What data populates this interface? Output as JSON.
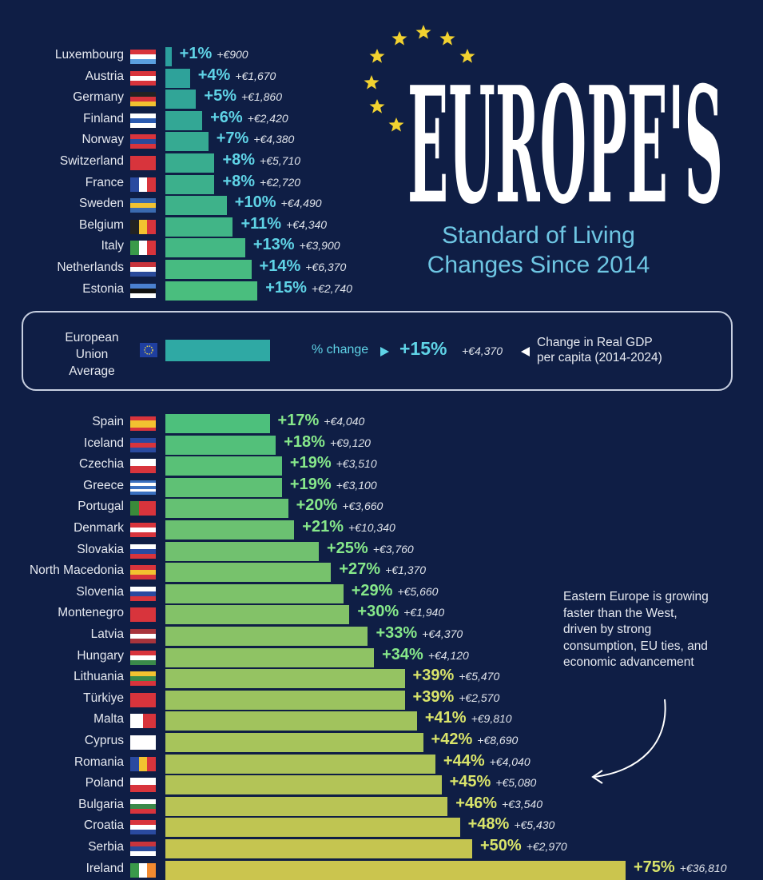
{
  "title": {
    "main": "EUROPE'S",
    "subtitle_line1": "Standard of Living",
    "subtitle_line2": "Changes Since 2014"
  },
  "eu_average": {
    "label_lines": [
      "European",
      "Union",
      "Average"
    ],
    "change_label": "% change",
    "pct": "+15%",
    "abs": "+€4,370",
    "description_line1": "Change in Real GDP",
    "description_line2": "per capita (2014-2024)",
    "value": 15
  },
  "annotation": [
    "Eastern Europe is growing",
    "faster than the West,",
    "driven by strong",
    "consumption, EU ties, and",
    "economic advancement"
  ],
  "colors": {
    "background": "#0f1e45",
    "bar_top": "#2b9f9d",
    "bar_mid": "#4cc07c",
    "bar_bottom": "#cbc54e",
    "stars": "#f2d230",
    "subtitle": "#6ec6e3"
  },
  "chart_data": {
    "type": "bar",
    "orientation": "horizontal",
    "grid": false,
    "xlim": [
      0,
      75
    ],
    "categories": [
      "Luxembourg",
      "Austria",
      "Germany",
      "Finland",
      "Norway",
      "Switzerland",
      "France",
      "Sweden",
      "Belgium",
      "Italy",
      "Netherlands",
      "Estonia",
      "Spain",
      "Iceland",
      "Czechia",
      "Greece",
      "Portugal",
      "Denmark",
      "Slovakia",
      "North Macedonia",
      "Slovenia",
      "Montenegro",
      "Latvia",
      "Hungary",
      "Lithuania",
      "Türkiye",
      "Malta",
      "Cyprus",
      "Romania",
      "Poland",
      "Bulgaria",
      "Croatia",
      "Serbia",
      "Ireland"
    ],
    "values": [
      1,
      4,
      5,
      6,
      7,
      8,
      8,
      10,
      11,
      13,
      14,
      15,
      17,
      18,
      19,
      19,
      20,
      21,
      25,
      27,
      29,
      30,
      33,
      34,
      39,
      39,
      41,
      42,
      44,
      45,
      46,
      48,
      50,
      75
    ],
    "pct_labels": [
      "+1%",
      "+4%",
      "+5%",
      "+6%",
      "+7%",
      "+8%",
      "+8%",
      "+10%",
      "+11%",
      "+13%",
      "+14%",
      "+15%",
      "+17%",
      "+18%",
      "+19%",
      "+19%",
      "+20%",
      "+21%",
      "+25%",
      "+27%",
      "+29%",
      "+30%",
      "+33%",
      "+34%",
      "+39%",
      "+39%",
      "+41%",
      "+42%",
      "+44%",
      "+45%",
      "+46%",
      "+48%",
      "+50%",
      "+75%"
    ],
    "abs_labels": [
      "+€900",
      "+€1,670",
      "+€1,860",
      "+€2,420",
      "+€4,380",
      "+€5,710",
      "+€2,720",
      "+€4,490",
      "+€4,340",
      "+€3,900",
      "+€6,370",
      "+€2,740",
      "+€4,040",
      "+€9,120",
      "+€3,510",
      "+€3,100",
      "+€3,660",
      "+€10,340",
      "+€3,760",
      "+€1,370",
      "+€5,660",
      "+€1,940",
      "+€4,370",
      "+€4,120",
      "+€5,470",
      "+€2,570",
      "+€9,810",
      "+€8,690",
      "+€4,040",
      "+€5,080",
      "+€3,540",
      "+€5,430",
      "+€2,970",
      "+€36,810"
    ],
    "flags": [
      [
        "h",
        "#d8343c",
        "#ffffff",
        "#5aa0e0"
      ],
      [
        "h",
        "#d8343c",
        "#ffffff",
        "#d8343c"
      ],
      [
        "h",
        "#222222",
        "#d8343c",
        "#f2c230"
      ],
      [
        "h",
        "#ffffff",
        "#2a5ab0",
        "#ffffff"
      ],
      [
        "h",
        "#d8343c",
        "#2a4a9a",
        "#d8343c"
      ],
      [
        "h",
        "#d8343c"
      ],
      [
        "v",
        "#2a4aa0",
        "#ffffff",
        "#d8343c"
      ],
      [
        "h",
        "#3a6ab0",
        "#f2c230",
        "#3a6ab0"
      ],
      [
        "v",
        "#222222",
        "#f2c230",
        "#d8343c"
      ],
      [
        "v",
        "#3a9a4a",
        "#ffffff",
        "#d8343c"
      ],
      [
        "h",
        "#c8343c",
        "#ffffff",
        "#2a4a9a"
      ],
      [
        "h",
        "#4a80d0",
        "#111111",
        "#ffffff"
      ],
      [
        "h",
        "#d8343c",
        "#f2c230",
        "#f2c230",
        "#d8343c"
      ],
      [
        "h",
        "#2a4aa0",
        "#d8343c",
        "#2a4aa0"
      ],
      [
        "h",
        "#ffffff",
        "#d8343c"
      ],
      [
        "h",
        "#3a70c0",
        "#ffffff",
        "#3a70c0",
        "#ffffff",
        "#3a70c0"
      ],
      [
        "v",
        "#3a8a3a",
        "#d8343c",
        "#d8343c"
      ],
      [
        "h",
        "#d8343c",
        "#ffffff",
        "#d8343c"
      ],
      [
        "h",
        "#ffffff",
        "#2a4aa0",
        "#d8343c"
      ],
      [
        "h",
        "#d8343c",
        "#f2c230",
        "#d8343c"
      ],
      [
        "h",
        "#ffffff",
        "#2a4aa0",
        "#d8343c"
      ],
      [
        "h",
        "#d8343c"
      ],
      [
        "h",
        "#a8343c",
        "#ffffff",
        "#a8343c"
      ],
      [
        "h",
        "#d8343c",
        "#ffffff",
        "#3a8a4a"
      ],
      [
        "h",
        "#f2c230",
        "#3a8a4a",
        "#d8343c"
      ],
      [
        "h",
        "#d8343c"
      ],
      [
        "v",
        "#ffffff",
        "#d8343c"
      ],
      [
        "h",
        "#ffffff"
      ],
      [
        "v",
        "#2a4aa0",
        "#f2c230",
        "#d8343c"
      ],
      [
        "h",
        "#ffffff",
        "#d8343c"
      ],
      [
        "h",
        "#ffffff",
        "#3a8a4a",
        "#d8343c"
      ],
      [
        "h",
        "#d8343c",
        "#ffffff",
        "#2a4aa0"
      ],
      [
        "h",
        "#c8343c",
        "#2a4a9a",
        "#ffffff"
      ],
      [
        "v",
        "#3a9a4a",
        "#ffffff",
        "#f28a30"
      ]
    ]
  }
}
